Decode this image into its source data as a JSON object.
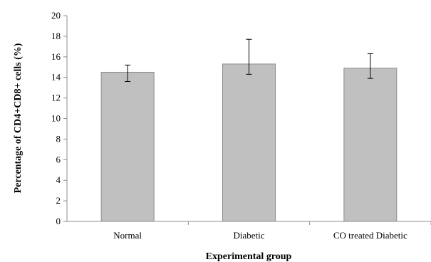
{
  "chart_data": {
    "type": "bar",
    "title": "",
    "xlabel": "Experimental group",
    "ylabel": "Percentage of CD4+CD8+ cells (%)",
    "ylim": [
      0,
      20
    ],
    "yticks": [
      0,
      2,
      4,
      6,
      8,
      10,
      12,
      14,
      16,
      18,
      20
    ],
    "categories": [
      "Normal",
      "Diabetic",
      "CO treated Diabetic"
    ],
    "values": [
      14.5,
      15.3,
      14.9
    ],
    "error_low": [
      13.6,
      14.3,
      13.9
    ],
    "error_high": [
      15.2,
      17.7,
      16.3
    ],
    "grid": false,
    "legend": "none",
    "colors": {
      "bar_fill": "#c0c0c0",
      "bar_stroke": "#8c8c8c",
      "axis": "#8c8c8c",
      "error_bar": "#000000"
    }
  }
}
